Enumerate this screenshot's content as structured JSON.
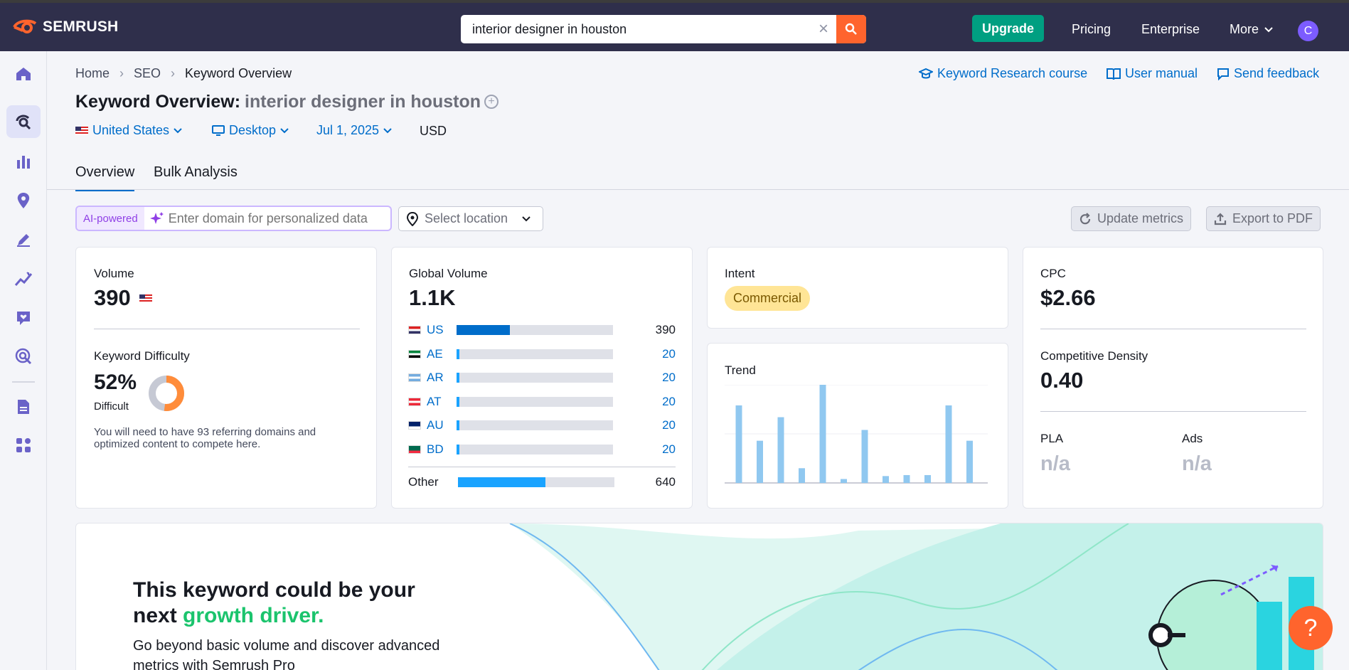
{
  "app": {
    "brand": "SEMRUSH",
    "accent": "#ff642d",
    "topbar_color": "#2f2f4b"
  },
  "search": {
    "value": "interior designer in houston",
    "clear_icon": "close-icon",
    "search_icon": "search-icon"
  },
  "topnav": {
    "upgrade": "Upgrade",
    "pricing": "Pricing",
    "enterprise": "Enterprise",
    "more": "More",
    "avatar_initial": "C"
  },
  "sidebar": {
    "icons": [
      "home-icon",
      "seo-icon",
      "chart-icon",
      "location-icon",
      "pen-icon",
      "trend-icon",
      "heart-chat-icon",
      "target-icon",
      "document-icon",
      "apps-icon"
    ]
  },
  "breadcrumb": [
    "Home",
    "SEO",
    "Keyword Overview"
  ],
  "links": {
    "course": "Keyword Research course",
    "manual": "User manual",
    "feedback": "Send feedback"
  },
  "title": {
    "prefix": "Keyword Overview:",
    "keyword": "interior designer in houston"
  },
  "filters": {
    "country": "United States",
    "device": "Desktop",
    "date": "Jul 1, 2025",
    "currency": "USD"
  },
  "tabs": [
    "Overview",
    "Bulk Analysis"
  ],
  "toolbar": {
    "ai_badge": "AI-powered",
    "domain_placeholder": "Enter domain for personalized data",
    "location_placeholder": "Select location",
    "update": "Update metrics",
    "export": "Export to PDF"
  },
  "volume": {
    "label": "Volume",
    "value": "390"
  },
  "difficulty": {
    "label": "Keyword Difficulty",
    "value": "52%",
    "percent": 52,
    "level": "Difficult",
    "note_line1": "You will need to have 93 referring domains and",
    "note_line2": "optimized content to compete here.",
    "color": "#ff8c3a"
  },
  "global": {
    "label": "Global Volume",
    "value": "1.1K",
    "rows": [
      {
        "code": "US",
        "value": "390",
        "share": 0.34
      },
      {
        "code": "AE",
        "value": "20",
        "share": 0.02
      },
      {
        "code": "AR",
        "value": "20",
        "share": 0.02
      },
      {
        "code": "AT",
        "value": "20",
        "share": 0.02
      },
      {
        "code": "AU",
        "value": "20",
        "share": 0.02
      },
      {
        "code": "BD",
        "value": "20",
        "share": 0.02
      }
    ],
    "other": {
      "label": "Other",
      "value": "640",
      "share": 0.56
    }
  },
  "intent": {
    "label": "Intent",
    "value": "Commercial"
  },
  "trend": {
    "label": "Trend"
  },
  "chart_data": {
    "type": "bar",
    "values": [
      0.79,
      0.43,
      0.67,
      0.15,
      1.0,
      0.04,
      0.54,
      0.07,
      0.08,
      0.08,
      0.79,
      0.43
    ],
    "ylim": [
      0,
      1
    ],
    "color": "#90c8f0"
  },
  "cpc": {
    "label": "CPC",
    "value": "$2.66"
  },
  "density": {
    "label": "Competitive Density",
    "value": "0.40"
  },
  "pla": {
    "label": "PLA",
    "value": "n/a"
  },
  "ads": {
    "label": "Ads",
    "value": "n/a"
  },
  "banner": {
    "line1": "This keyword could be your",
    "line2_prefix": "next ",
    "line2_highlight": "growth driver.",
    "sub1": "Go beyond basic volume and discover advanced",
    "sub2": "metrics with Semrush Pro"
  },
  "help": {
    "icon": "question-icon",
    "label": "?"
  }
}
